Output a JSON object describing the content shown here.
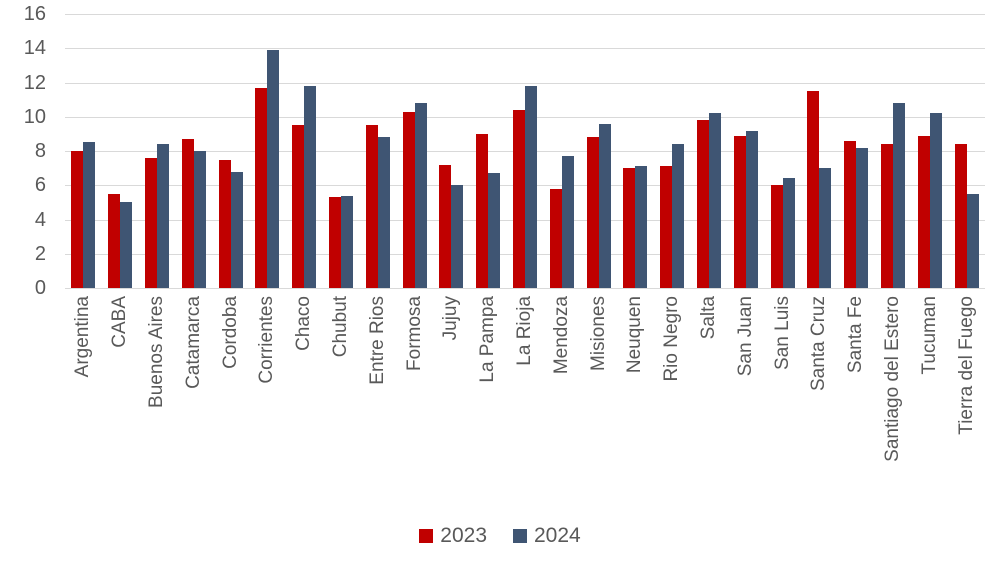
{
  "chart_data": {
    "type": "bar",
    "title": "",
    "xlabel": "",
    "ylabel": "",
    "categories": [
      "Argentina",
      "CABA",
      "Buenos Aires",
      "Catamarca",
      "Cordoba",
      "Corrientes",
      "Chaco",
      "Chubut",
      "Entre Rios",
      "Formosa",
      "Jujuy",
      "La Pampa",
      "La Rioja",
      "Mendoza",
      "Misiones",
      "Neuquen",
      "Rio Negro",
      "Salta",
      "San Juan",
      "San Luis",
      "Santa Cruz",
      "Santa Fe",
      "Santiago del Estero",
      "Tucuman",
      "Tierra del Fuego"
    ],
    "series": [
      {
        "name": "2023",
        "color": "#c00000",
        "values": [
          8.0,
          5.5,
          7.6,
          8.7,
          7.5,
          11.7,
          9.5,
          5.3,
          9.5,
          10.3,
          7.2,
          9.0,
          10.4,
          5.8,
          8.8,
          7.0,
          7.1,
          9.8,
          8.9,
          6.0,
          11.5,
          8.6,
          8.4,
          8.9,
          8.4
        ]
      },
      {
        "name": "2024",
        "color": "#3f5573",
        "values": [
          8.5,
          5.0,
          8.4,
          8.0,
          6.8,
          13.9,
          11.8,
          5.4,
          8.8,
          10.8,
          6.0,
          6.7,
          11.8,
          7.7,
          9.6,
          7.1,
          8.4,
          10.2,
          9.2,
          6.4,
          7.0,
          8.2,
          10.8,
          10.2,
          5.5
        ]
      }
    ],
    "ylim": [
      0,
      16
    ],
    "ytick_step": 2,
    "ytick_labels": [
      "0",
      "2",
      "4",
      "6",
      "8",
      "10",
      "12",
      "14",
      "16"
    ],
    "grid": true,
    "gridline_color": "#d9d9d9",
    "axis_text_color": "#595959",
    "legend_position": "bottom",
    "legend_labels": [
      "2023",
      "2024"
    ]
  }
}
